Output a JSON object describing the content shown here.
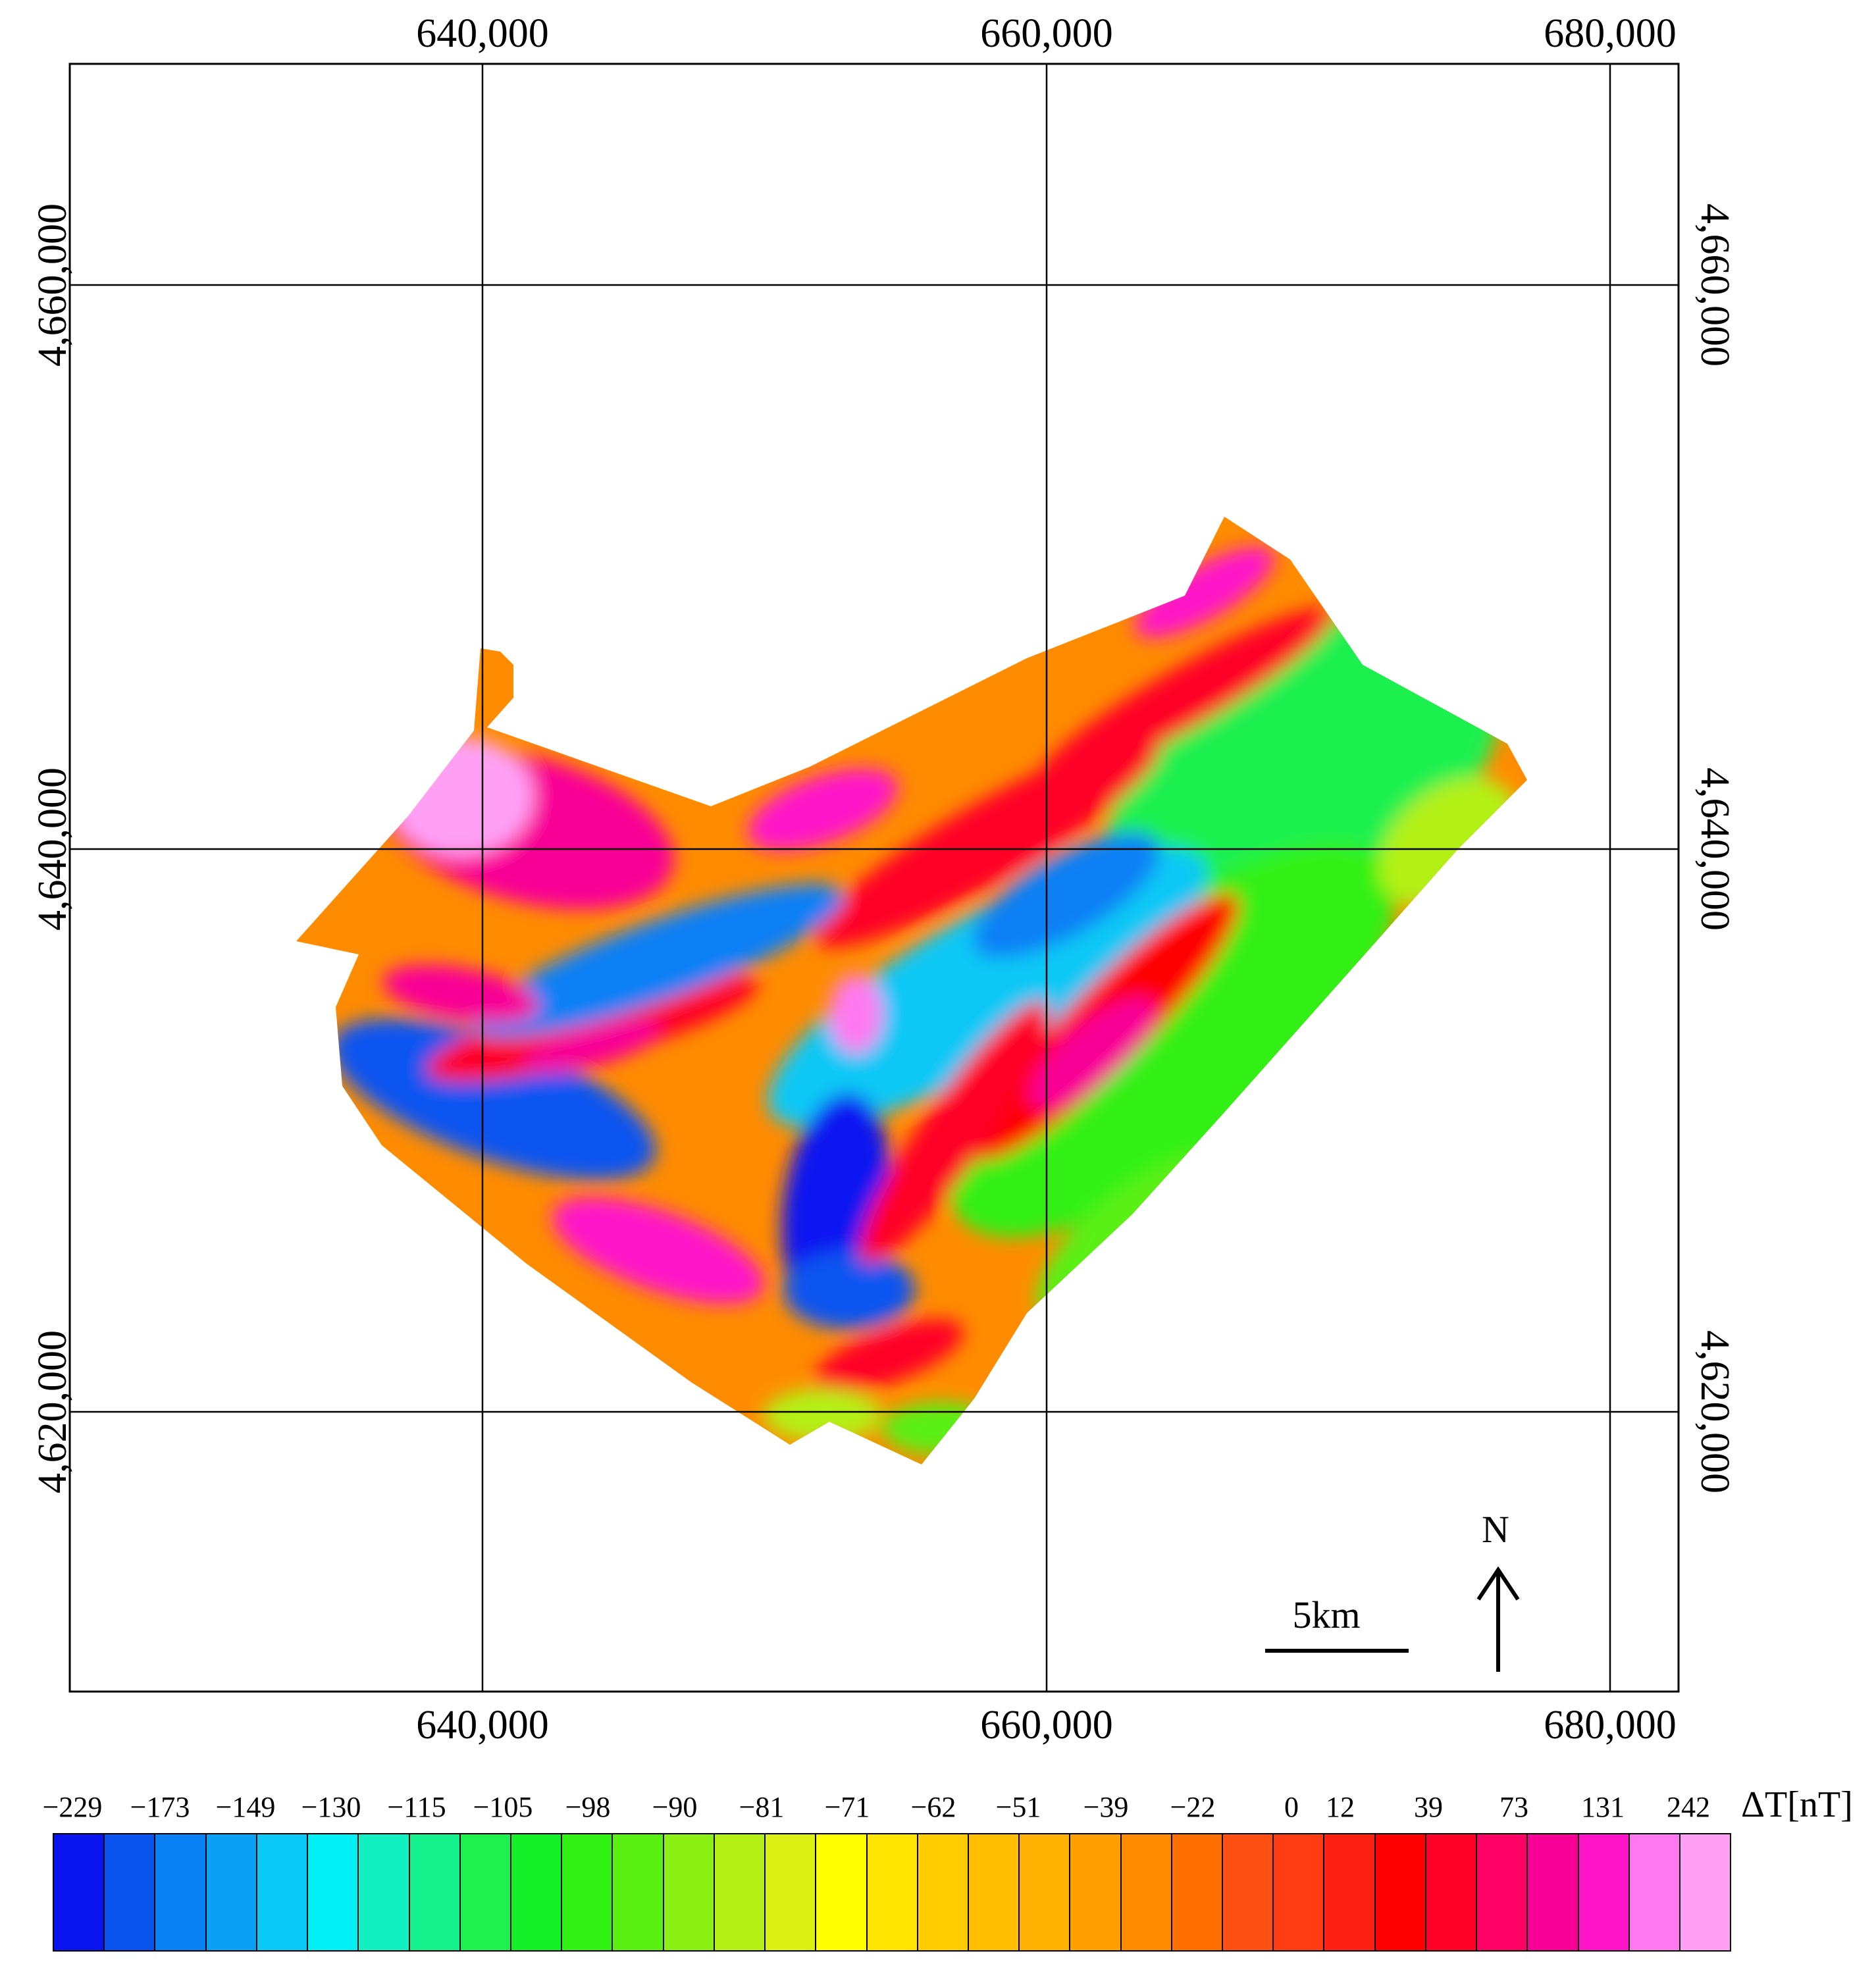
{
  "map": {
    "x_ticks": [
      "640,000",
      "660,000",
      "680,000"
    ],
    "y_ticks": [
      "4,660,000",
      "4,640,000",
      "4,620,000"
    ],
    "north_label": "N",
    "scale_label": "5km"
  },
  "legend": {
    "unit": "ΔT[nT]",
    "values": [
      "−229",
      "−173",
      "−149",
      "−130",
      "−115",
      "−105",
      "−98",
      "−90",
      "−81",
      "−71",
      "−62",
      "−51",
      "−39",
      "−22",
      "0",
      "12",
      "39",
      "73",
      "131",
      "242"
    ],
    "colors": [
      "#0a14f0",
      "#0a55f0",
      "#0a80f5",
      "#0aa0f5",
      "#0ac8f5",
      "#00f0f5",
      "#10f0c0",
      "#14f08c",
      "#1ef050",
      "#14f028",
      "#30f014",
      "#5af014",
      "#8cf014",
      "#b4f014",
      "#dcf014",
      "#ffff00",
      "#ffe400",
      "#ffcc00",
      "#ffbe00",
      "#ffb000",
      "#ffa000",
      "#ff8c00",
      "#ff7000",
      "#ff5014",
      "#ff3c14",
      "#ff2014",
      "#ff0000",
      "#ff0028",
      "#ff0064",
      "#f80096",
      "#ff14c8",
      "#ff78f0",
      "#ffa0f5"
    ]
  }
}
